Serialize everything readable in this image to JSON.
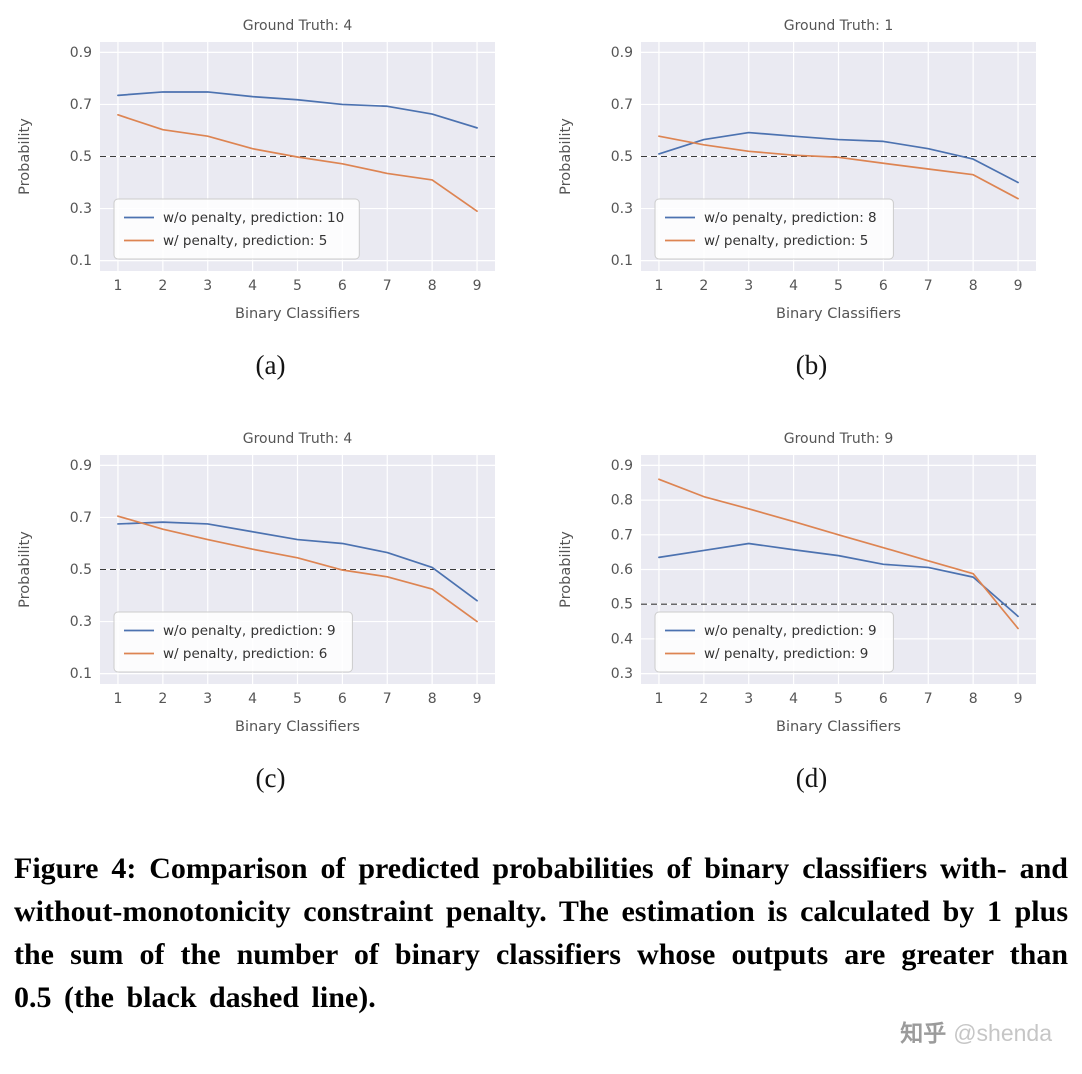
{
  "colors": {
    "blue": "#4C72B0",
    "orange": "#DD8452",
    "plot_bg": "#EAEAF2",
    "grid": "#FFFFFF",
    "reference": "#3a3a3a",
    "axis_text": "#555555",
    "legend_text": "#333333",
    "legend_border": "#cccccc"
  },
  "chart_data": [
    {
      "type": "line",
      "panel_label": "(a)",
      "title": "Ground Truth: 4",
      "xlabel": "Binary Classifiers",
      "ylabel": "Probability",
      "x": [
        1,
        2,
        3,
        4,
        5,
        6,
        7,
        8,
        9
      ],
      "yticks": [
        0.1,
        0.3,
        0.5,
        0.7,
        0.9
      ],
      "ylim": [
        0.1,
        0.9
      ],
      "reference_line_y": 0.5,
      "grid": true,
      "legend_position": "lower left",
      "series": [
        {
          "name": "w/o penalty, prediction: 10",
          "color": "#4C72B0",
          "values": [
            0.735,
            0.748,
            0.748,
            0.73,
            0.718,
            0.7,
            0.693,
            0.663,
            0.61
          ]
        },
        {
          "name": "w/ penalty, prediction: 5",
          "color": "#DD8452",
          "values": [
            0.66,
            0.603,
            0.578,
            0.53,
            0.498,
            0.472,
            0.435,
            0.41,
            0.29
          ]
        }
      ]
    },
    {
      "type": "line",
      "panel_label": "(b)",
      "title": "Ground Truth: 1",
      "xlabel": "Binary Classifiers",
      "ylabel": "Probability",
      "x": [
        1,
        2,
        3,
        4,
        5,
        6,
        7,
        8,
        9
      ],
      "yticks": [
        0.1,
        0.3,
        0.5,
        0.7,
        0.9
      ],
      "ylim": [
        0.1,
        0.9
      ],
      "reference_line_y": 0.5,
      "grid": true,
      "legend_position": "lower left",
      "series": [
        {
          "name": "w/o penalty, prediction: 8",
          "color": "#4C72B0",
          "values": [
            0.51,
            0.565,
            0.592,
            0.578,
            0.565,
            0.558,
            0.53,
            0.49,
            0.4
          ]
        },
        {
          "name": "w/ penalty, prediction: 5",
          "color": "#DD8452",
          "values": [
            0.578,
            0.545,
            0.52,
            0.505,
            0.497,
            0.474,
            0.452,
            0.43,
            0.338
          ]
        }
      ]
    },
    {
      "type": "line",
      "panel_label": "(c)",
      "title": "Ground Truth: 4",
      "xlabel": "Binary Classifiers",
      "ylabel": "Probability",
      "x": [
        1,
        2,
        3,
        4,
        5,
        6,
        7,
        8,
        9
      ],
      "yticks": [
        0.1,
        0.3,
        0.5,
        0.7,
        0.9
      ],
      "ylim": [
        0.1,
        0.9
      ],
      "reference_line_y": 0.5,
      "grid": true,
      "legend_position": "lower left",
      "series": [
        {
          "name": "w/o penalty, prediction: 9",
          "color": "#4C72B0",
          "values": [
            0.675,
            0.682,
            0.675,
            0.645,
            0.615,
            0.6,
            0.565,
            0.508,
            0.38
          ]
        },
        {
          "name": "w/ penalty, prediction: 6",
          "color": "#DD8452",
          "values": [
            0.705,
            0.655,
            0.615,
            0.578,
            0.545,
            0.498,
            0.472,
            0.425,
            0.3
          ]
        }
      ]
    },
    {
      "type": "line",
      "panel_label": "(d)",
      "title": "Ground Truth: 9",
      "xlabel": "Binary Classifiers",
      "ylabel": "Probability",
      "x": [
        1,
        2,
        3,
        4,
        5,
        6,
        7,
        8,
        9
      ],
      "yticks": [
        0.3,
        0.4,
        0.5,
        0.6,
        0.7,
        0.8,
        0.9
      ],
      "ylim": [
        0.3,
        0.9
      ],
      "reference_line_y": 0.5,
      "grid": true,
      "legend_position": "lower left",
      "series": [
        {
          "name": "w/o penalty, prediction: 9",
          "color": "#4C72B0",
          "values": [
            0.635,
            0.655,
            0.675,
            0.657,
            0.64,
            0.615,
            0.606,
            0.578,
            0.465
          ]
        },
        {
          "name": "w/ penalty, prediction: 9",
          "color": "#DD8452",
          "values": [
            0.86,
            0.81,
            0.775,
            0.738,
            0.7,
            0.663,
            0.625,
            0.588,
            0.43
          ]
        }
      ]
    }
  ],
  "caption": {
    "text": "Figure 4: Comparison of predicted probabilities of binary classifiers with- and without-monotonicity constraint penalty. The estimation is calculated by 1 plus the sum of the number of binary classifiers whose outputs are greater than 0.5 (the black dashed line)."
  },
  "watermark": {
    "site": "知乎",
    "handle": "@shenda"
  }
}
